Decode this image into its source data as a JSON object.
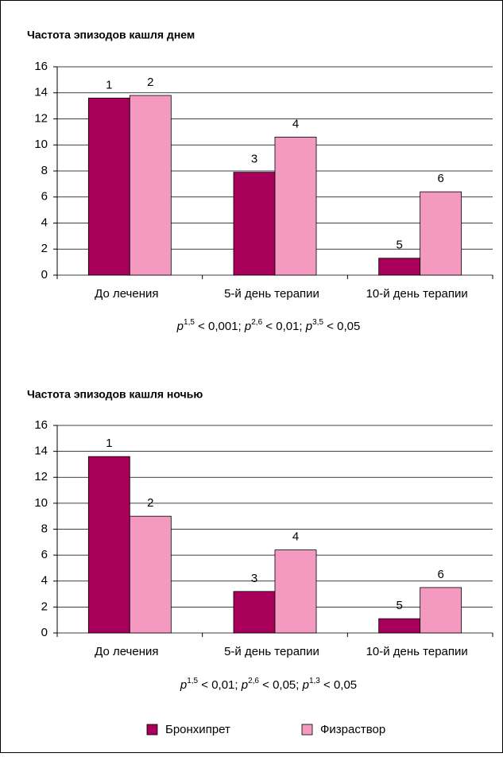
{
  "chart_data": [
    {
      "type": "bar",
      "title": "Частота эпизодов кашля днем",
      "categories": [
        "До лечения",
        "5-й день терапии",
        "10-й день терапии"
      ],
      "series": [
        {
          "color": "#a8005a",
          "values": [
            13.6,
            7.9,
            1.3
          ],
          "bar_labels": [
            "1",
            "3",
            "5"
          ]
        },
        {
          "color": "#f49ac1",
          "values": [
            13.8,
            10.6,
            6.4
          ],
          "bar_labels": [
            "2",
            "4",
            "6"
          ]
        }
      ],
      "ylim": [
        0,
        16
      ],
      "yticks": [
        0,
        2,
        4,
        6,
        8,
        10,
        12,
        14,
        16
      ],
      "grid": true,
      "note": [
        {
          "p": "p",
          "sup": "1,5",
          "text": " < 0,001; "
        },
        {
          "p": "p",
          "sup": "2,6",
          "text": " < 0,01; "
        },
        {
          "p": "p",
          "sup": "3,5",
          "text": " < 0,05"
        }
      ]
    },
    {
      "type": "bar",
      "title": "Частота эпизодов кашля ночью",
      "categories": [
        "До лечения",
        "5-й день терапии",
        "10-й день терапии"
      ],
      "series": [
        {
          "name": "Бронхипрет",
          "color": "#a8005a",
          "values": [
            13.6,
            3.2,
            1.1
          ],
          "bar_labels": [
            "1",
            "3",
            "5"
          ]
        },
        {
          "name": "Физраствор",
          "color": "#f49ac1",
          "values": [
            9.0,
            6.4,
            3.5
          ],
          "bar_labels": [
            "2",
            "4",
            "6"
          ]
        }
      ],
      "ylim": [
        0,
        16
      ],
      "yticks": [
        0,
        2,
        4,
        6,
        8,
        10,
        12,
        14,
        16
      ],
      "grid": true,
      "note": [
        {
          "p": "p",
          "sup": "1,5",
          "text": " < 0,01; "
        },
        {
          "p": "p",
          "sup": "2,6",
          "text": " < 0,05; "
        },
        {
          "p": "p",
          "sup": "1,3",
          "text": " < 0,05"
        }
      ]
    }
  ]
}
